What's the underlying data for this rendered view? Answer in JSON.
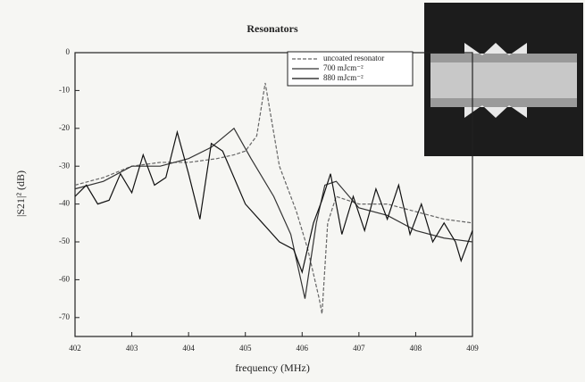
{
  "chart_data": {
    "type": "line",
    "title": "Resonators",
    "x_label": "frequency (MHz)",
    "y_label": "|S21|² (dB)",
    "xlim": [
      402,
      409
    ],
    "xticks": [
      402,
      403,
      404,
      405,
      406,
      407,
      408,
      409
    ],
    "ylim": [
      -75,
      0
    ],
    "yticks": [
      0,
      -10,
      -20,
      -30,
      -40,
      -50,
      -60,
      -70
    ],
    "legend": "top-right",
    "series": [
      {
        "name": "uncoated resonator",
        "color": "#666666",
        "x": [
          402,
          402.5,
          403,
          403.5,
          404,
          404.5,
          404.8,
          405,
          405.2,
          405.35,
          405.6,
          405.9,
          406.1,
          406.3,
          406.35,
          406.45,
          406.6,
          407,
          407.5,
          408,
          408.5,
          409
        ],
        "values": [
          -35,
          -33,
          -30,
          -29,
          -29,
          -28,
          -27,
          -26,
          -22,
          -8,
          -30,
          -42,
          -52,
          -65,
          -69,
          -45,
          -38,
          -40,
          -40,
          -42,
          -44,
          -45
        ]
      },
      {
        "name": "700 mJcm⁻²",
        "color": "#333333",
        "x": [
          402,
          402.5,
          403,
          403.5,
          404,
          404.4,
          404.8,
          405.1,
          405.5,
          405.8,
          406.05,
          406.25,
          406.4,
          406.6,
          407,
          407.5,
          408,
          408.5,
          409
        ],
        "values": [
          -36,
          -34,
          -30,
          -30,
          -28,
          -25,
          -20,
          -28,
          -38,
          -48,
          -65,
          -45,
          -35,
          -34,
          -41,
          -43,
          -47,
          -49,
          -50
        ]
      },
      {
        "name": "880 mJcm⁻²",
        "color": "#111111",
        "x": [
          402,
          402.2,
          402.4,
          402.6,
          402.8,
          403,
          403.2,
          403.4,
          403.6,
          403.8,
          404,
          404.2,
          404.4,
          404.6,
          404.8,
          405,
          405.3,
          405.6,
          405.85,
          406,
          406.2,
          406.35,
          406.5,
          406.7,
          406.9,
          407.1,
          407.3,
          407.5,
          407.7,
          407.9,
          408.1,
          408.3,
          408.5,
          408.7,
          408.8,
          409
        ],
        "values": [
          -38,
          -35,
          -40,
          -39,
          -32,
          -37,
          -27,
          -35,
          -33,
          -21,
          -32,
          -44,
          -24,
          -26,
          -33,
          -40,
          -45,
          -50,
          -52,
          -58,
          -45,
          -39,
          -32,
          -48,
          -38,
          -47,
          -36,
          -44,
          -35,
          -48,
          -40,
          -50,
          -45,
          -50,
          -55,
          -47
        ]
      }
    ]
  }
}
